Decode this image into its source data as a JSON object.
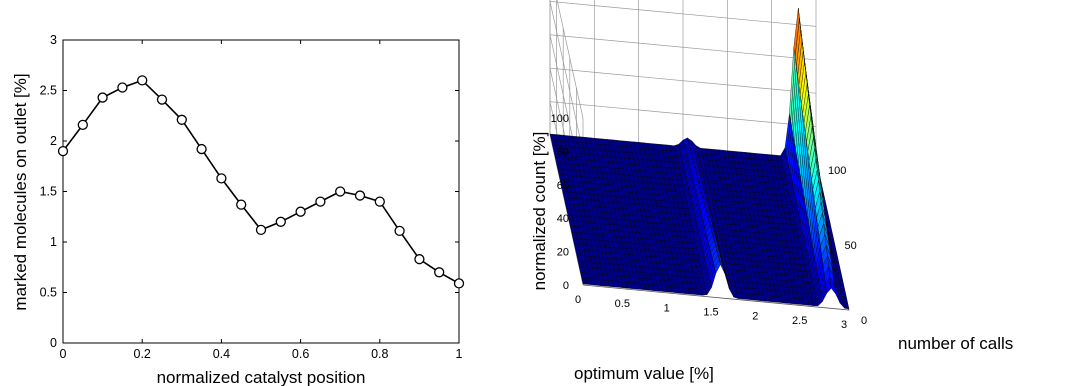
{
  "chart_data": [
    {
      "type": "line",
      "title": "",
      "xlabel": "normalized catalyst position",
      "ylabel": "marked molecules on outlet [%]",
      "xlim": [
        0,
        1
      ],
      "ylim": [
        0,
        3
      ],
      "xticks": [
        "0",
        "0.2",
        "0.4",
        "0.6",
        "0.8",
        "1"
      ],
      "yticks": [
        "0",
        "0.5",
        "1",
        "1.5",
        "2",
        "2.5",
        "3"
      ],
      "grid": false,
      "marker": "circle",
      "series": [
        {
          "x": [
            0,
            0.05,
            0.1,
            0.15,
            0.2,
            0.25,
            0.3,
            0.35,
            0.4,
            0.45,
            0.5,
            0.55,
            0.6,
            0.65,
            0.7,
            0.75,
            0.8,
            0.85,
            0.9,
            0.95,
            1.0
          ],
          "y": [
            1.9,
            2.16,
            2.43,
            2.53,
            2.6,
            2.41,
            2.21,
            1.92,
            1.63,
            1.37,
            1.12,
            1.2,
            1.3,
            1.4,
            1.5,
            1.46,
            1.4,
            1.11,
            0.83,
            0.7,
            0.59
          ]
        }
      ]
    },
    {
      "type": "surface",
      "title": "",
      "xlabel": "optimum value [%]",
      "ylabel": "number of calls",
      "zlabel": "normalized count [%]",
      "xlim": [
        0,
        3
      ],
      "ylim": [
        0,
        100
      ],
      "zlim": [
        0,
        100
      ],
      "xticks": [
        "0",
        "0.5",
        "1",
        "1.5",
        "2",
        "2.5",
        "3"
      ],
      "yticks": [
        "0",
        "50",
        "100"
      ],
      "zticks": [
        "0",
        "20",
        "40",
        "60",
        "80",
        "100"
      ],
      "grid": true,
      "colormap": "jet",
      "ridges": [
        {
          "x_center": 1.55,
          "height_at_x0": 20,
          "height_at_max_calls": 6
        },
        {
          "x_center": 2.8,
          "height_at_x0": 12,
          "height_at_max_calls": 90
        }
      ]
    }
  ]
}
